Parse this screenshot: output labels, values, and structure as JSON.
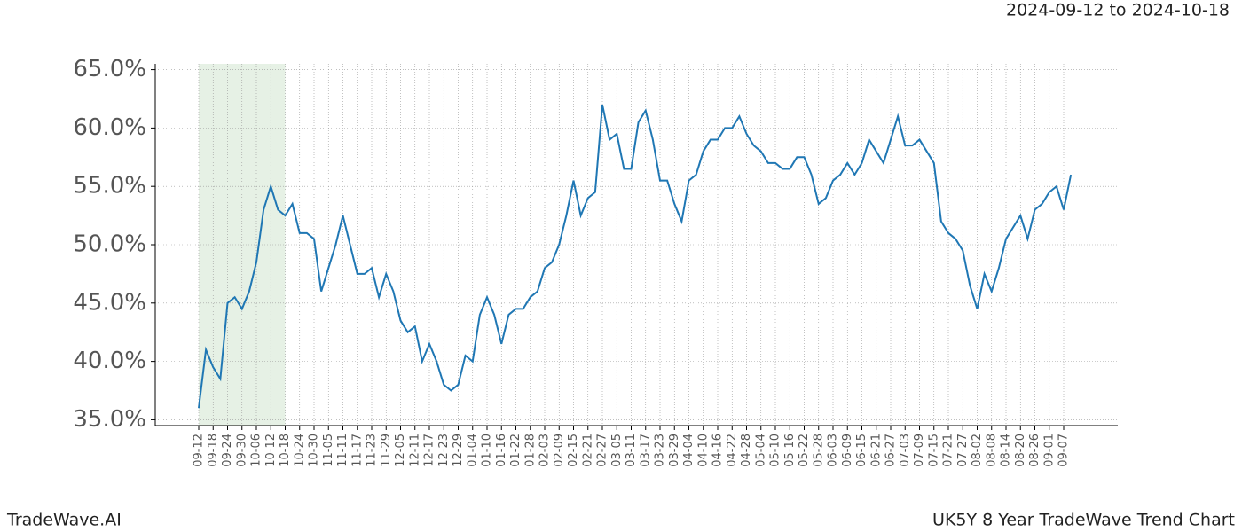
{
  "chart_data": {
    "type": "line",
    "title": "2024-09-12 to 2024-10-18",
    "footer_left": "TradeWave.AI",
    "footer_right": "UK5Y 8 Year TradeWave Trend Chart",
    "categories": [
      "09-12",
      null,
      "09-18",
      null,
      "09-24",
      null,
      "09-30",
      null,
      "10-06",
      null,
      "10-12",
      null,
      "10-18",
      null,
      "10-24",
      null,
      "10-30",
      null,
      "11-05",
      null,
      "11-11",
      null,
      "11-17",
      null,
      "11-23",
      null,
      "11-29",
      null,
      "12-05",
      null,
      "12-11",
      null,
      "12-17",
      null,
      "12-23",
      null,
      "12-29",
      null,
      "01-04",
      null,
      "01-10",
      null,
      "01-16",
      null,
      "01-22",
      null,
      "01-28",
      null,
      "02-03",
      null,
      "02-09",
      null,
      "02-15",
      null,
      "02-21",
      null,
      "02-27",
      null,
      "03-05",
      null,
      "03-11",
      null,
      "03-17",
      null,
      "03-23",
      null,
      "03-29",
      null,
      "04-04",
      null,
      "04-10",
      null,
      "04-16",
      null,
      "04-22",
      null,
      "04-28",
      null,
      "05-04",
      null,
      "05-10",
      null,
      "05-16",
      null,
      "05-22",
      null,
      "05-28",
      null,
      "06-03",
      null,
      "06-09",
      null,
      "06-15",
      null,
      "06-21",
      null,
      "06-27",
      null,
      "07-03",
      null,
      "07-09",
      null,
      "07-15",
      null,
      "07-21",
      null,
      "07-27",
      null,
      "08-02",
      null,
      "08-08",
      null,
      "08-14",
      null,
      "08-20",
      null,
      "08-26",
      null,
      "09-01",
      null,
      "09-07",
      null
    ],
    "series": [
      {
        "name": "UK5Y",
        "color": "#1f77b4",
        "values": [
          36,
          41,
          39.5,
          38.5,
          45,
          45.5,
          44.5,
          46,
          48.5,
          53,
          55,
          53,
          52.5,
          53.5,
          51,
          51,
          50.5,
          46,
          48,
          50,
          52.5,
          50,
          47.5,
          47.5,
          48,
          45.5,
          47.5,
          46,
          43.5,
          42.5,
          43,
          40,
          41.5,
          40,
          38,
          37.5,
          38,
          40.5,
          40,
          44,
          45.5,
          44,
          41.5,
          44,
          44.5,
          44.5,
          45.5,
          46,
          48,
          48.5,
          50,
          52.5,
          55.5,
          52.5,
          54,
          54.5,
          62,
          59,
          59.5,
          56.5,
          56.5,
          60.5,
          61.5,
          59,
          55.5,
          55.5,
          53.5,
          52,
          55.5,
          56,
          58,
          59,
          59,
          60,
          60,
          61,
          59.5,
          58.5,
          58,
          57,
          57,
          56.5,
          56.5,
          57.5,
          57.5,
          56,
          53.5,
          54,
          55.5,
          56,
          57,
          56,
          57,
          59,
          58,
          57,
          59,
          61,
          58.5,
          58.5,
          59,
          58,
          57,
          52,
          51,
          50.5,
          49.5,
          46.5,
          44.5,
          47.5,
          46,
          48,
          50.5,
          51.5,
          52.5,
          50.5,
          53,
          53.5,
          54.5,
          55,
          53,
          56
        ]
      }
    ],
    "highlight_range": [
      "09-12",
      "10-18"
    ],
    "highlight_color": "#d5e8d4",
    "ylim": [
      34.5,
      65.5
    ],
    "yticks": [
      {
        "value": 35,
        "label": "35.0%"
      },
      {
        "value": 40,
        "label": "40.0%"
      },
      {
        "value": 45,
        "label": "45.0%"
      },
      {
        "value": 50,
        "label": "50.0%"
      },
      {
        "value": 55,
        "label": "55.0%"
      },
      {
        "value": 60,
        "label": "60.0%"
      },
      {
        "value": 65,
        "label": "65.0%"
      }
    ],
    "grid": true
  }
}
